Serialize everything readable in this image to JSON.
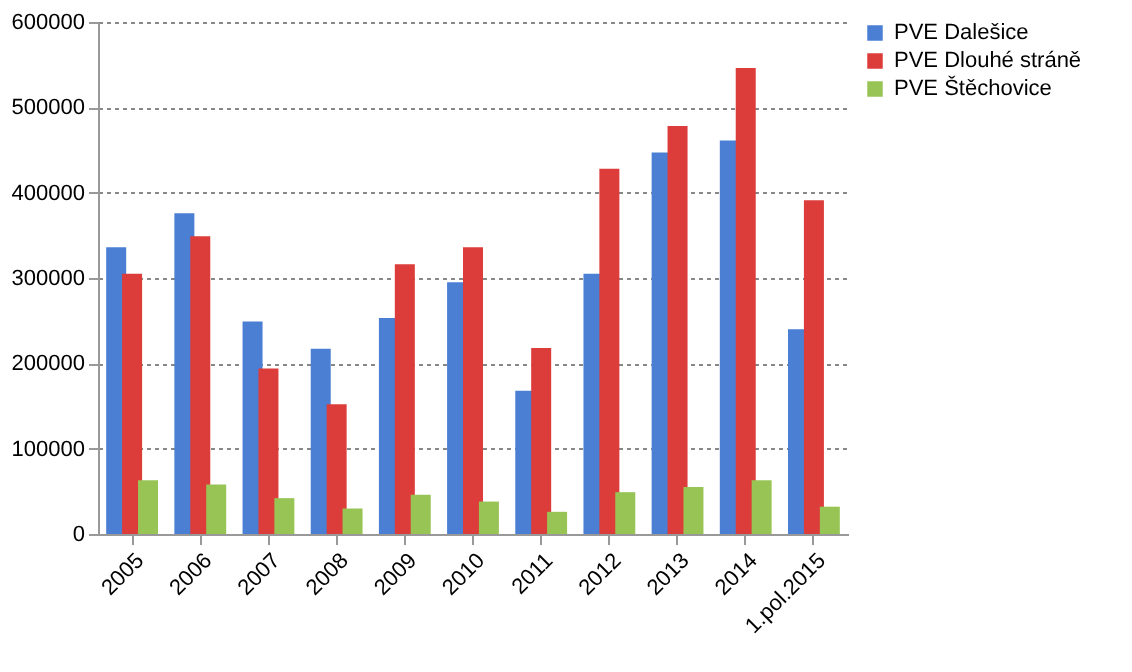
{
  "chart_data": {
    "type": "bar",
    "categories": [
      "2005",
      "2006",
      "2007",
      "2008",
      "2009",
      "2010",
      "2011",
      "2012",
      "2013",
      "2014",
      "1.pol.2015"
    ],
    "series": [
      {
        "name": "PVE Dalešice",
        "color": "#4a7fd4",
        "values": [
          336000,
          376000,
          249000,
          217000,
          253000,
          295000,
          168000,
          305000,
          447000,
          461000,
          240000
        ]
      },
      {
        "name": "PVE Dlouhé stráně",
        "color": "#dc3c3a",
        "values": [
          305000,
          349000,
          194000,
          152000,
          316000,
          336000,
          218000,
          428000,
          478000,
          546000,
          391000
        ]
      },
      {
        "name": "PVE Štěchovice",
        "color": "#98c455",
        "values": [
          63000,
          58000,
          42000,
          30000,
          46000,
          38000,
          26000,
          49000,
          55000,
          63000,
          32000
        ]
      }
    ],
    "ylim": [
      0,
      600000
    ],
    "yticks": [
      0,
      100000,
      200000,
      300000,
      400000,
      500000,
      600000
    ],
    "grid": "y",
    "legend": "right"
  }
}
